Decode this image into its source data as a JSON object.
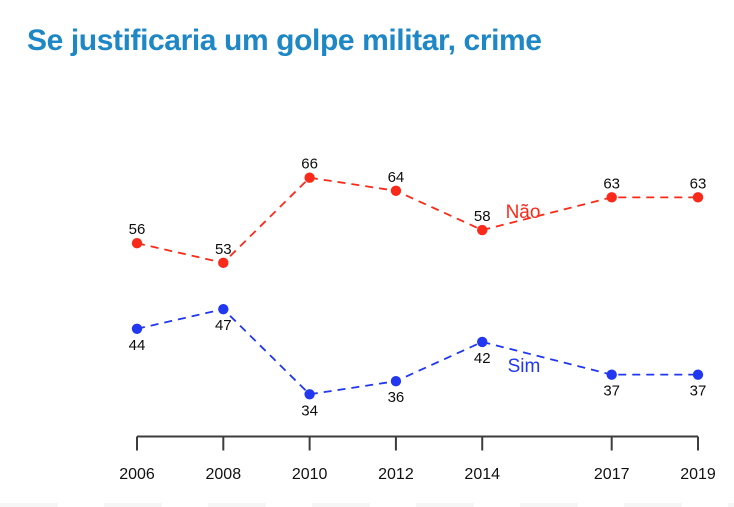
{
  "page": {
    "title": "Se justificaria um golpe militar, crime"
  },
  "colors": {
    "title_blue": "#1e87c6",
    "nao_red": "#fa2a1a",
    "sim_blue": "#2138f0",
    "axis": "#3d3d3d",
    "value_label": "#0d0d0d"
  },
  "chart_data": {
    "type": "line",
    "title": "Se justificaria um golpe militar, crime",
    "x": [
      2006,
      2008,
      2010,
      2012,
      2014,
      2017,
      2019
    ],
    "x_tick_labels": [
      "2006",
      "2008",
      "2010",
      "2012",
      "2014",
      "2017",
      "2019"
    ],
    "series": [
      {
        "name": "Não",
        "color": "#fa2a1a",
        "line_style": "dashed",
        "marker": "circle",
        "values": [
          56,
          53,
          66,
          64,
          58,
          63,
          63
        ],
        "value_label_position": "above"
      },
      {
        "name": "Sim",
        "color": "#2138f0",
        "line_style": "dashed",
        "marker": "circle",
        "values": [
          44,
          47,
          34,
          36,
          42,
          37,
          37
        ],
        "value_label_position": "below"
      }
    ],
    "inline_series_labels": [
      "Não",
      "Sim"
    ],
    "xlabel": "",
    "ylabel": "",
    "y_range_estimate": [
      25,
      75
    ],
    "grid": false,
    "legend_position": "inline-next-to-lines"
  }
}
